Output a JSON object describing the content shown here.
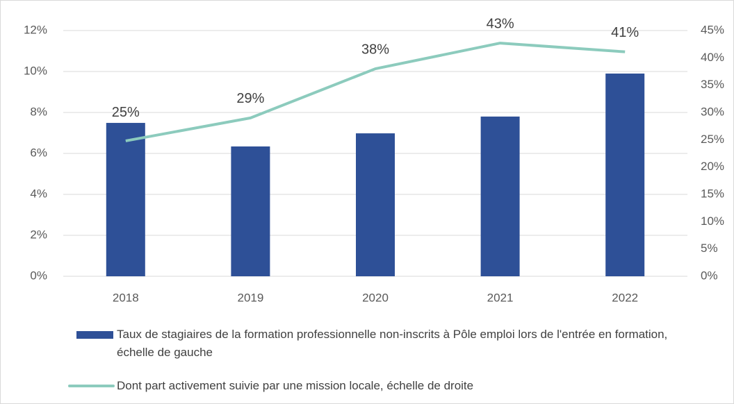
{
  "chart_data": {
    "type": "bar",
    "categories": [
      "2018",
      "2019",
      "2020",
      "2021",
      "2022"
    ],
    "series": [
      {
        "name": "Taux de stagiaires de la formation professionnelle non-inscrits à Pôle emploi lors de l'entrée en formation, échelle de gauche",
        "type": "bar",
        "color": "#2e5097",
        "values": [
          7.49,
          6.34,
          6.98,
          7.8,
          9.9
        ]
      },
      {
        "name": "Dont part activement suivie par une mission locale, échelle de droite",
        "type": "line",
        "axis": "y2",
        "color": "#8ccbbd",
        "values": [
          24.8,
          29.0,
          38.0,
          42.7,
          41.1
        ],
        "value_labels": [
          "25%",
          "29%",
          "38%",
          "43%",
          "41%"
        ]
      }
    ],
    "ylim": [
      0,
      12
    ],
    "yticks": [
      {
        "value": 0,
        "label": "0%"
      },
      {
        "value": 2,
        "label": "2%"
      },
      {
        "value": 4,
        "label": "4%"
      },
      {
        "value": 6,
        "label": "6%"
      },
      {
        "value": 8,
        "label": "8%"
      },
      {
        "value": 10,
        "label": "10%"
      },
      {
        "value": 12,
        "label": "12%"
      }
    ],
    "y2lim": [
      0,
      45
    ],
    "y2ticks": [
      {
        "value": 0,
        "label": "0%"
      },
      {
        "value": 5,
        "label": "5%"
      },
      {
        "value": 10,
        "label": "10%"
      },
      {
        "value": 15,
        "label": "15%"
      },
      {
        "value": 20,
        "label": "20%"
      },
      {
        "value": 25,
        "label": "25%"
      },
      {
        "value": 30,
        "label": "30%"
      },
      {
        "value": 35,
        "label": "35%"
      },
      {
        "value": 40,
        "label": "40%"
      },
      {
        "value": 45,
        "label": "45%"
      }
    ],
    "grid": true,
    "legend": "bottom"
  }
}
